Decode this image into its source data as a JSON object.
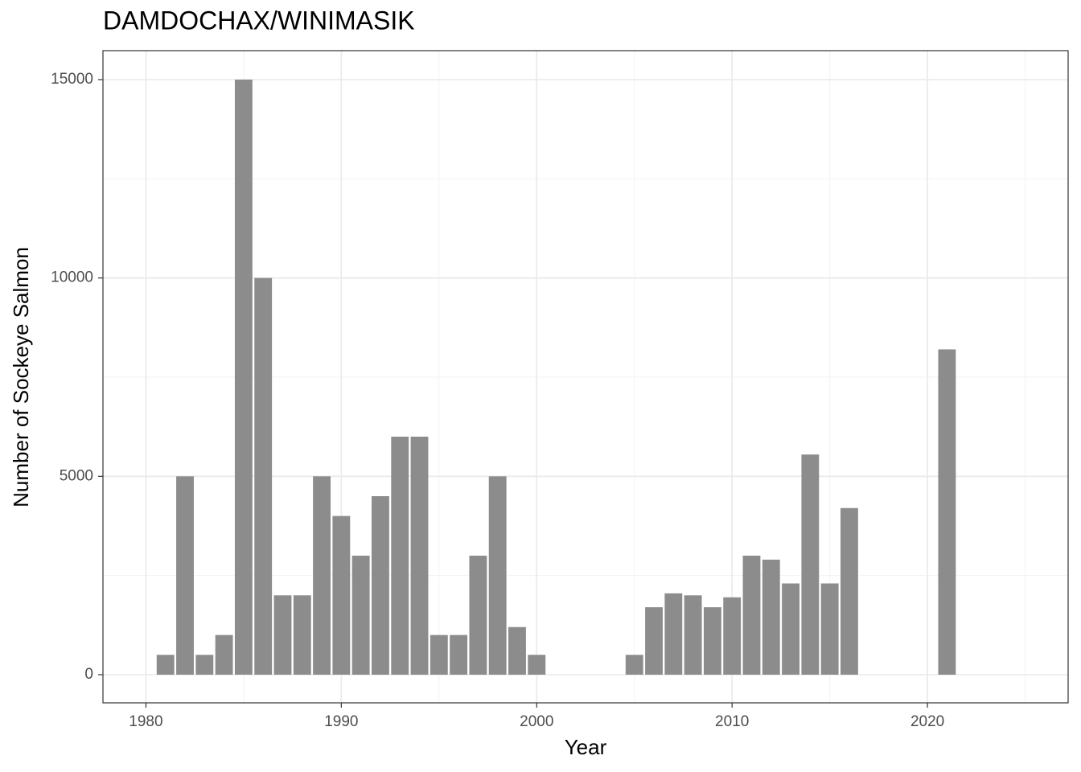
{
  "chart_data": {
    "type": "bar",
    "title": "DAMDOCHAX/WINIMASIK",
    "x_label": "Year",
    "y_label": "Number of Sockeye Salmon",
    "x": [
      1981,
      1982,
      1983,
      1984,
      1985,
      1986,
      1987,
      1988,
      1989,
      1990,
      1991,
      1992,
      1993,
      1994,
      1995,
      1996,
      1997,
      1998,
      1999,
      2000,
      2005,
      2006,
      2007,
      2008,
      2009,
      2010,
      2011,
      2012,
      2013,
      2014,
      2015,
      2016,
      2021
    ],
    "values": [
      500,
      5000,
      500,
      1000,
      15000,
      10000,
      2000,
      2000,
      5000,
      4000,
      3000,
      4500,
      6000,
      6000,
      1000,
      1000,
      3000,
      5000,
      1200,
      500,
      500,
      1700,
      2050,
      2000,
      1700,
      1950,
      3000,
      2900,
      2300,
      5550,
      2300,
      4200,
      8200
    ],
    "color": "#8c8c8c",
    "bar_width": 0.9,
    "xlim": [
      1977.8,
      2027.2
    ],
    "xticks": [
      1980,
      1990,
      2000,
      2010,
      2020
    ],
    "x_minor_ticks": [
      1985,
      1995,
      2005,
      2015,
      2025
    ],
    "ylim": [
      -710,
      15730
    ],
    "yticks": [
      0,
      5000,
      10000,
      15000
    ],
    "y_minor_ticks": [
      2500,
      7500,
      12500
    ],
    "grid": true
  }
}
